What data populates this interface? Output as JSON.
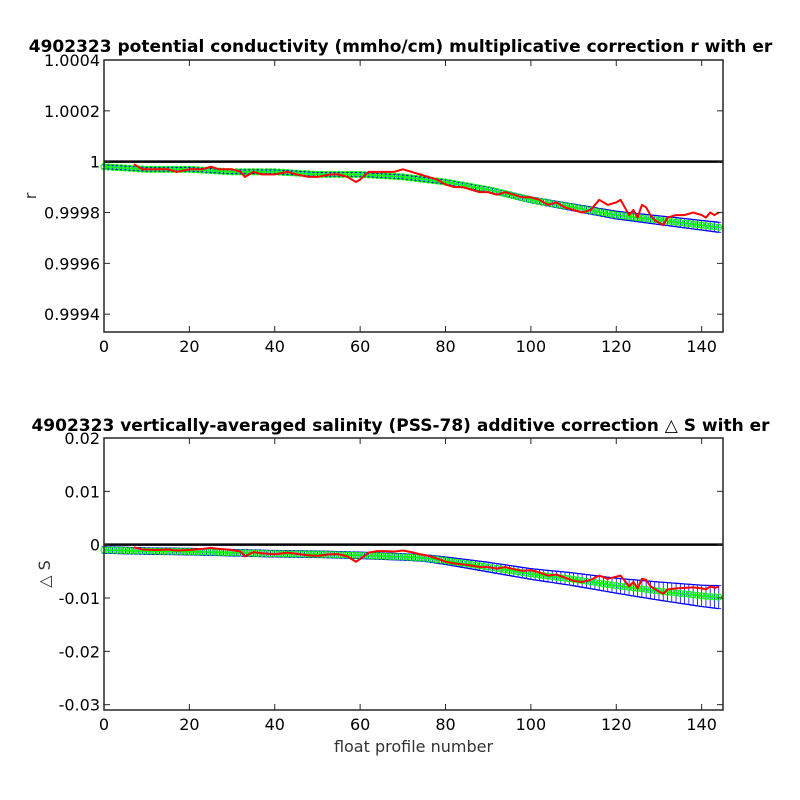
{
  "chart_data": [
    {
      "type": "line",
      "title": "4902323 potential conductivity (mmho/cm) multiplicative correction r with er",
      "xlabel": "",
      "ylabel": "r",
      "xlim": [
        0,
        145
      ],
      "ylim": [
        0.99933,
        1.0004
      ],
      "xticks": [
        "0",
        "20",
        "40",
        "60",
        "80",
        "100",
        "120",
        "140"
      ],
      "yticks": [
        "0.9994",
        "0.9996",
        "0.9998",
        "1",
        "1.0002",
        "1.0004"
      ],
      "reference_line": 1,
      "series": [
        {
          "role": "fit with error bars",
          "color": "#00ff00",
          "error_color": "#0000ff",
          "x": [
            0,
            10,
            20,
            30,
            40,
            50,
            60,
            70,
            75,
            80,
            90,
            100,
            110,
            120,
            130,
            140,
            145
          ],
          "y": [
            0.99998,
            0.99997,
            0.99997,
            0.99996,
            0.99996,
            0.99995,
            0.99995,
            0.99994,
            0.99993,
            0.99992,
            0.99989,
            0.99985,
            0.99982,
            0.99979,
            0.99977,
            0.99975,
            0.99974
          ],
          "err": [
            8e-06,
            8e-06,
            8e-06,
            8e-06,
            8e-06,
            8e-06,
            8e-06,
            8e-06,
            8e-06,
            9e-06,
            1e-05,
            1.1e-05,
            1.3e-05,
            1.5e-05,
            1.7e-05,
            1.9e-05,
            2e-05
          ]
        },
        {
          "role": "estimate",
          "color": "#ff0000",
          "x": [
            7,
            9,
            12,
            15,
            17,
            20,
            23,
            25,
            27,
            30,
            32,
            33,
            35,
            37,
            40,
            43,
            45,
            48,
            50,
            53,
            55,
            57,
            59,
            60,
            62,
            64,
            66,
            68,
            70,
            72,
            74,
            76,
            78,
            80,
            82,
            84,
            86,
            88,
            90,
            92,
            94,
            96,
            98,
            100,
            102,
            104,
            106,
            108,
            110,
            112,
            114,
            116,
            118,
            120,
            121,
            122,
            123,
            124,
            125,
            126,
            127,
            128,
            129,
            130,
            131,
            132,
            134,
            136,
            138,
            140,
            141,
            142,
            143,
            144
          ],
          "y": [
            0.99999,
            0.99997,
            0.99997,
            0.99997,
            0.99996,
            0.99997,
            0.99997,
            0.99998,
            0.99997,
            0.99997,
            0.99996,
            0.99994,
            0.99996,
            0.99995,
            0.99995,
            0.99996,
            0.99995,
            0.99994,
            0.99994,
            0.99995,
            0.99995,
            0.99994,
            0.99992,
            0.99993,
            0.99996,
            0.99996,
            0.99996,
            0.99996,
            0.99997,
            0.99996,
            0.99995,
            0.99994,
            0.99993,
            0.99991,
            0.9999,
            0.9999,
            0.99989,
            0.99988,
            0.99988,
            0.99987,
            0.99988,
            0.99987,
            0.99986,
            0.99986,
            0.99985,
            0.99983,
            0.99984,
            0.99982,
            0.99981,
            0.9998,
            0.99981,
            0.99985,
            0.99983,
            0.99984,
            0.99985,
            0.99982,
            0.99979,
            0.99981,
            0.99978,
            0.99983,
            0.99982,
            0.99979,
            0.99977,
            0.99976,
            0.99975,
            0.99978,
            0.99979,
            0.99979,
            0.9998,
            0.99979,
            0.99978,
            0.9998,
            0.99979,
            0.9998
          ]
        }
      ]
    },
    {
      "type": "line",
      "title": "4902323 vertically-averaged salinity (PSS-78) additive correction △ S with er",
      "xlabel": "float profile number",
      "ylabel": "△ S",
      "xlim": [
        0,
        145
      ],
      "ylim": [
        -0.031,
        0.02
      ],
      "xticks": [
        "0",
        "20",
        "40",
        "60",
        "80",
        "100",
        "120",
        "140"
      ],
      "yticks": [
        "0.02",
        "0.01",
        "0",
        "-0.01",
        "-0.02",
        "-0.03"
      ],
      "reference_line": 0,
      "series": [
        {
          "role": "fit with error bars",
          "color": "#00ff00",
          "error_color": "#0000ff",
          "x": [
            0,
            10,
            20,
            30,
            40,
            50,
            60,
            70,
            75,
            80,
            90,
            100,
            110,
            120,
            130,
            140,
            145
          ],
          "y": [
            -0.001,
            -0.0012,
            -0.0013,
            -0.0015,
            -0.0017,
            -0.0018,
            -0.002,
            -0.0023,
            -0.0025,
            -0.003,
            -0.0042,
            -0.0055,
            -0.0065,
            -0.0077,
            -0.0087,
            -0.0096,
            -0.0099
          ],
          "err": [
            0.0006,
            0.0006,
            0.0006,
            0.0006,
            0.0006,
            0.0006,
            0.0006,
            0.0006,
            0.0006,
            0.0007,
            0.0009,
            0.001,
            0.0012,
            0.0014,
            0.0017,
            0.002,
            0.0022
          ]
        },
        {
          "role": "estimate",
          "color": "#ff0000",
          "x": [
            7,
            9,
            12,
            15,
            17,
            20,
            23,
            25,
            27,
            30,
            32,
            33,
            35,
            37,
            40,
            43,
            45,
            48,
            50,
            53,
            55,
            57,
            59,
            60,
            62,
            64,
            66,
            68,
            70,
            72,
            74,
            76,
            78,
            80,
            82,
            84,
            86,
            88,
            90,
            92,
            94,
            96,
            98,
            100,
            102,
            104,
            106,
            108,
            110,
            112,
            114,
            116,
            118,
            120,
            121,
            122,
            123,
            124,
            125,
            126,
            127,
            128,
            129,
            130,
            131,
            132,
            134,
            136,
            138,
            140,
            141,
            142,
            143,
            144
          ],
          "y": [
            -0.0005,
            -0.0009,
            -0.001,
            -0.0009,
            -0.0011,
            -0.001,
            -0.0008,
            -0.0006,
            -0.0008,
            -0.001,
            -0.0013,
            -0.0022,
            -0.0014,
            -0.0016,
            -0.0018,
            -0.0015,
            -0.0017,
            -0.002,
            -0.0021,
            -0.0018,
            -0.0018,
            -0.0022,
            -0.0032,
            -0.0027,
            -0.0015,
            -0.0012,
            -0.0012,
            -0.0013,
            -0.0011,
            -0.0014,
            -0.0018,
            -0.0021,
            -0.0026,
            -0.0032,
            -0.0035,
            -0.0037,
            -0.0039,
            -0.0042,
            -0.0042,
            -0.0045,
            -0.0042,
            -0.0046,
            -0.0049,
            -0.0048,
            -0.0052,
            -0.0058,
            -0.0056,
            -0.0062,
            -0.0068,
            -0.007,
            -0.0066,
            -0.0058,
            -0.0064,
            -0.006,
            -0.0058,
            -0.0068,
            -0.0078,
            -0.007,
            -0.0082,
            -0.0064,
            -0.0066,
            -0.0078,
            -0.0083,
            -0.0088,
            -0.0092,
            -0.0084,
            -0.0082,
            -0.0081,
            -0.008,
            -0.0082,
            -0.0084,
            -0.0078,
            -0.0081,
            -0.0079
          ]
        }
      ]
    }
  ]
}
